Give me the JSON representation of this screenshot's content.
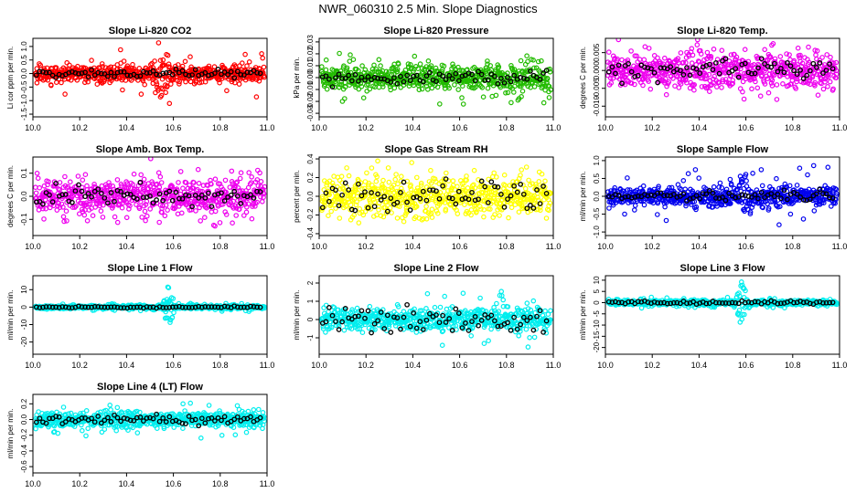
{
  "title": "NWR_060310  2.5 Min. Slope Diagnostics",
  "panel_color_names": {
    "red": "#ff0000",
    "green": "#22bb00",
    "magenta": "#ee00ee",
    "yellow": "#ffff00",
    "blue": "#0000ee",
    "cyan": "#00eeee",
    "black": "#000000"
  },
  "chart_data": [
    {
      "type": "scatter",
      "title": "Slope Li-820 CO2",
      "xlabel": "",
      "ylabel": "Li cor ppm per min.",
      "color": "#ff0000",
      "xlim": [
        10.0,
        11.0
      ],
      "ylim": [
        -1.6,
        1.3
      ],
      "xticks": [
        "10.0",
        "10.2",
        "10.4",
        "10.6",
        "10.8",
        "11.0"
      ],
      "yticks": [
        "-1.5",
        "-1.0",
        "-0.5",
        "0.0",
        "0.5",
        "1.0"
      ],
      "ytick_values": [
        -1.5,
        -1.0,
        -0.5,
        0.0,
        0.5,
        1.0
      ],
      "spread": 0.22,
      "outlier": 0.9,
      "spike_center": 10.55,
      "spike_width": 0.05,
      "spike_amp": 1.1,
      "black_spread": 0.12
    },
    {
      "type": "scatter",
      "title": "Slope Li-820 Pressure",
      "xlabel": "",
      "ylabel": "kPa per min.",
      "color": "#22bb00",
      "xlim": [
        10.0,
        11.0
      ],
      "ylim": [
        -0.033,
        0.033
      ],
      "xticks": [
        "10.0",
        "10.2",
        "10.4",
        "10.6",
        "10.8",
        "11.0"
      ],
      "yticks": [
        "-0.03",
        "-0.02",
        "-0.01",
        "0.00",
        "0.01",
        "0.02",
        "0.03"
      ],
      "ytick_values": [
        -0.03,
        -0.02,
        -0.01,
        0.0,
        0.01,
        0.02,
        0.03
      ],
      "spread": 0.008,
      "outlier": 0.024,
      "spike_center": 10.1,
      "spike_width": 0.04,
      "spike_amp": 0.012,
      "black_spread": 0.004
    },
    {
      "type": "scatter",
      "title": "Slope Li-820 Temp.",
      "xlabel": "",
      "ylabel": "degrees C per min.",
      "color": "#ee00ee",
      "xlim": [
        10.0,
        11.0
      ],
      "ylim": [
        -0.013,
        0.009
      ],
      "xticks": [
        "10.0",
        "10.2",
        "10.4",
        "10.6",
        "10.8",
        "11.0"
      ],
      "yticks": [
        "-0.010",
        "-0.005",
        "0.000",
        "0.005"
      ],
      "ytick_values": [
        -0.01,
        -0.005,
        0.0,
        0.005
      ],
      "spread": 0.0035,
      "outlier": 0.009,
      "spike_center": 10.4,
      "spike_width": 0.15,
      "spike_amp": 0.004,
      "black_spread": 0.002
    },
    {
      "type": "scatter",
      "title": "Slope Amb. Box Temp.",
      "xlabel": "",
      "ylabel": "degrees C per min.",
      "color": "#ee00ee",
      "xlim": [
        10.0,
        11.0
      ],
      "ylim": [
        -0.17,
        0.17
      ],
      "xticks": [
        "10.0",
        "10.2",
        "10.4",
        "10.6",
        "10.8",
        "11.0"
      ],
      "yticks": [
        "-0.1",
        "0.0",
        "0.1"
      ],
      "ytick_values": [
        -0.1,
        0.0,
        0.1
      ],
      "spread": 0.055,
      "outlier": 0.14,
      "spike_center": 10.5,
      "spike_width": 0.1,
      "spike_amp": 0.05,
      "black_spread": 0.04
    },
    {
      "type": "scatter",
      "title": "Slope Gas Stream RH",
      "xlabel": "",
      "ylabel": "percent per min.",
      "color": "#ffff00",
      "xlim": [
        10.0,
        11.0
      ],
      "ylim": [
        -0.42,
        0.42
      ],
      "xticks": [
        "10.0",
        "10.2",
        "10.4",
        "10.6",
        "10.8",
        "11.0"
      ],
      "yticks": [
        "-0.4",
        "-0.2",
        "0.0",
        "0.2",
        "0.4"
      ],
      "ytick_values": [
        -0.4,
        -0.2,
        0.0,
        0.2,
        0.4
      ],
      "spread": 0.16,
      "outlier": 0.38,
      "spike_center": 10.5,
      "spike_width": 0.2,
      "spike_amp": 0.05,
      "black_spread": 0.14
    },
    {
      "type": "scatter",
      "title": "Slope Sample Flow",
      "xlabel": "",
      "ylabel": "ml/min per min.",
      "color": "#0000ee",
      "xlim": [
        10.0,
        11.0
      ],
      "ylim": [
        -1.1,
        1.1
      ],
      "xticks": [
        "10.0",
        "10.2",
        "10.4",
        "10.6",
        "10.8",
        "11.0"
      ],
      "yticks": [
        "-1.0",
        "-0.5",
        "0.0",
        "0.5",
        "1.0"
      ],
      "ytick_values": [
        -1.0,
        -0.5,
        0.0,
        0.5,
        1.0
      ],
      "spread": 0.2,
      "outlier": 0.9,
      "spike_center": 10.6,
      "spike_width": 0.05,
      "spike_amp": 0.6,
      "black_spread": 0.12
    },
    {
      "type": "scatter",
      "title": "Slope Line 1 Flow",
      "xlabel": "",
      "ylabel": "ml/min per min.",
      "color": "#00eeee",
      "xlim": [
        10.0,
        11.0
      ],
      "ylim": [
        -27,
        18
      ],
      "xticks": [
        "10.0",
        "10.2",
        "10.4",
        "10.6",
        "10.8",
        "11.0"
      ],
      "yticks": [
        "-20",
        "-10",
        "0",
        "10"
      ],
      "ytick_values": [
        -20,
        -10,
        0,
        10
      ],
      "spread": 0.8,
      "outlier": 2.5,
      "spike_center": 10.58,
      "spike_width": 0.03,
      "spike_amp": 14,
      "black_spread": 0.4
    },
    {
      "type": "scatter",
      "title": "Slope Line 2 Flow",
      "xlabel": "",
      "ylabel": "ml/min per min.",
      "color": "#00eeee",
      "xlim": [
        10.0,
        11.0
      ],
      "ylim": [
        -1.9,
        2.4
      ],
      "xticks": [
        "10.0",
        "10.2",
        "10.4",
        "10.6",
        "10.8",
        "11.0"
      ],
      "yticks": [
        "-1",
        "0",
        "1",
        "2"
      ],
      "ytick_values": [
        -1,
        0,
        1,
        2
      ],
      "spread": 0.45,
      "outlier": 1.6,
      "spike_center": 10.85,
      "spike_width": 0.06,
      "spike_amp": 0.9,
      "black_spread": 0.6
    },
    {
      "type": "scatter",
      "title": "Slope Line 3 Flow",
      "xlabel": "",
      "ylabel": "ml/min per min.",
      "color": "#00eeee",
      "xlim": [
        10.0,
        11.0
      ],
      "ylim": [
        -23,
        12
      ],
      "xticks": [
        "10.0",
        "10.2",
        "10.4",
        "10.6",
        "10.8",
        "11.0"
      ],
      "yticks": [
        "-20",
        "-15",
        "-10",
        "-5",
        "0",
        "5",
        "10"
      ],
      "ytick_values": [
        -20,
        -15,
        -10,
        -5,
        0,
        5,
        10
      ],
      "spread": 0.9,
      "outlier": 2.5,
      "spike_center": 10.58,
      "spike_width": 0.03,
      "spike_amp": 12,
      "black_spread": 0.6
    },
    {
      "type": "scatter",
      "title": "Slope Line 4 (LT) Flow",
      "xlabel": "",
      "ylabel": "ml/min per min.",
      "color": "#00eeee",
      "xlim": [
        10.0,
        11.0
      ],
      "ylim": [
        -0.68,
        0.32
      ],
      "xticks": [
        "10.0",
        "10.2",
        "10.4",
        "10.6",
        "10.8",
        "11.0"
      ],
      "yticks": [
        "-0.6",
        "-0.4",
        "-0.2",
        "0.0",
        "0.2"
      ],
      "ytick_values": [
        -0.6,
        -0.4,
        -0.2,
        0.0,
        0.2
      ],
      "spread": 0.07,
      "outlier": 0.25,
      "spike_center": 10.3,
      "spike_width": 0.2,
      "spike_amp": 0.05,
      "black_spread": 0.05
    }
  ]
}
